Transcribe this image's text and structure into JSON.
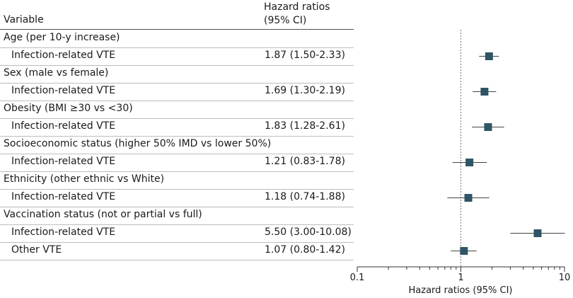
{
  "header": {
    "variable": "Variable",
    "hr_line1": "Hazard ratios",
    "hr_line2": "(95% CI)"
  },
  "rows": [
    {
      "label": "Age (per 10-y increase)",
      "value": ""
    },
    {
      "label": "Infection-related VTE",
      "value": "1.87 (1.50-2.33)"
    },
    {
      "label": "Sex (male vs female)",
      "value": ""
    },
    {
      "label": "Infection-related VTE",
      "value": "1.69 (1.30-2.19)"
    },
    {
      "label": "Obesity (BMI ≥30 vs <30)",
      "value": ""
    },
    {
      "label": "Infection-related VTE",
      "value": "1.83 (1.28-2.61)"
    },
    {
      "label": "Socioeconomic status (higher 50% IMD vs lower 50%)",
      "value": ""
    },
    {
      "label": "Infection-related VTE",
      "value": "1.21 (0.83-1.78)"
    },
    {
      "label": "Ethnicity (other ethnic vs White)",
      "value": ""
    },
    {
      "label": "Infection-related VTE",
      "value": "1.18 (0.74-1.88)"
    },
    {
      "label": "Vaccination status (not or partial vs full)",
      "value": ""
    },
    {
      "label": "Infection-related VTE",
      "value": "5.50 (3.00-10.08)"
    },
    {
      "label": "Other VTE",
      "value": "1.07 (0.80-1.42)"
    }
  ],
  "chart_data": {
    "type": "scatter",
    "xscale": "log",
    "xlim": [
      0.1,
      10
    ],
    "xticks": [
      "0.1",
      "1",
      "10"
    ],
    "xlabel": "Hazard ratios (95% CI)",
    "reference_line": 1,
    "marker_color": "#2e5465",
    "points": [
      {
        "row": 1,
        "hr": 1.87,
        "lo": 1.5,
        "hi": 2.33
      },
      {
        "row": 3,
        "hr": 1.69,
        "lo": 1.3,
        "hi": 2.19
      },
      {
        "row": 5,
        "hr": 1.83,
        "lo": 1.28,
        "hi": 2.61
      },
      {
        "row": 7,
        "hr": 1.21,
        "lo": 0.83,
        "hi": 1.78
      },
      {
        "row": 9,
        "hr": 1.18,
        "lo": 0.74,
        "hi": 1.88
      },
      {
        "row": 11,
        "hr": 5.5,
        "lo": 3.0,
        "hi": 10.08
      },
      {
        "row": 12,
        "hr": 1.07,
        "lo": 0.8,
        "hi": 1.42
      }
    ]
  }
}
